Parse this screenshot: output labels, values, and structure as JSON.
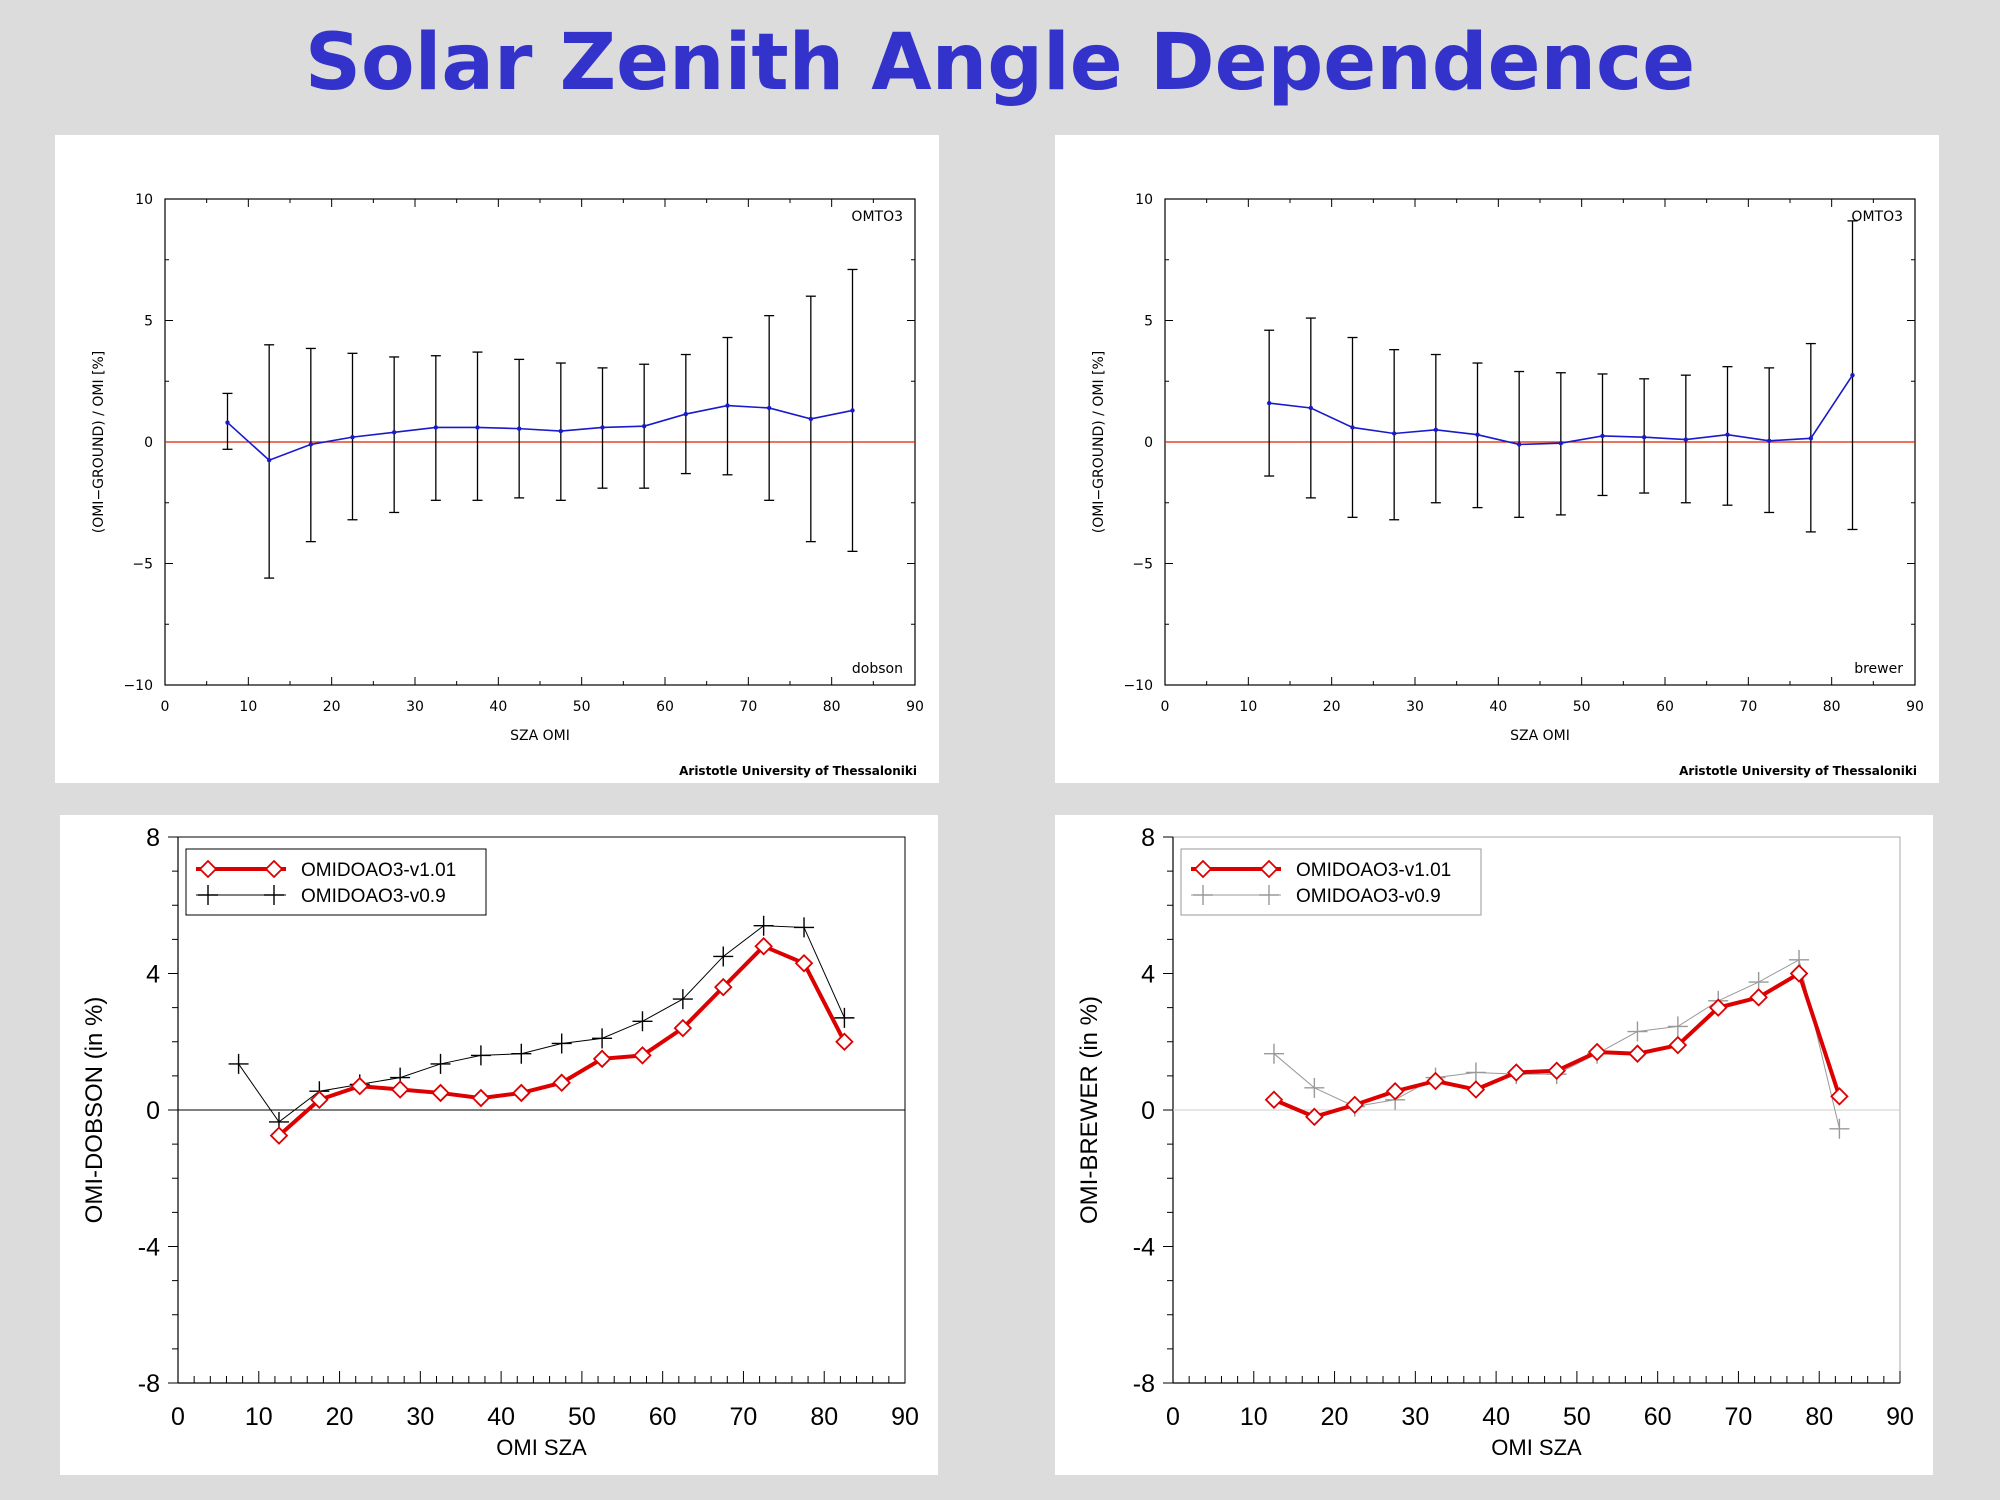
{
  "page_title": "Solar Zenith Angle Dependence",
  "colors": {
    "title": "#3333cc",
    "blue_line": "#1a1acc",
    "red_zero": "#dd2200",
    "red_series": "#dd0000"
  },
  "chart_data": [
    {
      "type": "line",
      "id": "dobson-errorbar",
      "title": "",
      "product_label": "OMTO3",
      "station_type_label": "dobson",
      "footer": "Aristotle University of Thessaloniki",
      "xlabel": "SZA OMI",
      "ylabel": "(OMI−GROUND) / OMI  [%]",
      "xlim": [
        0,
        90
      ],
      "ylim": [
        -10,
        10
      ],
      "xticks": [
        0,
        10,
        20,
        30,
        40,
        50,
        60,
        70,
        80,
        90
      ],
      "yticks": [
        -10,
        -5,
        0,
        5,
        10
      ],
      "x": [
        7.5,
        12.5,
        17.5,
        22.5,
        27.5,
        32.5,
        37.5,
        42.5,
        47.5,
        52.5,
        57.5,
        62.5,
        67.5,
        72.5,
        77.5,
        82.5
      ],
      "y": [
        0.8,
        -0.75,
        -0.1,
        0.2,
        0.4,
        0.6,
        0.6,
        0.55,
        0.45,
        0.6,
        0.65,
        1.15,
        1.5,
        1.4,
        0.95,
        1.3
      ],
      "err_low": [
        -0.3,
        -5.6,
        -4.1,
        -3.2,
        -2.9,
        -2.4,
        -2.4,
        -2.3,
        -2.4,
        -1.9,
        -1.9,
        -1.3,
        -1.35,
        -2.4,
        -4.1,
        -4.5
      ],
      "err_high": [
        2.0,
        4.0,
        3.85,
        3.65,
        3.5,
        3.55,
        3.7,
        3.4,
        3.25,
        3.05,
        3.2,
        3.6,
        4.3,
        5.2,
        6.0,
        7.1
      ],
      "grid": false,
      "zero_line": true
    },
    {
      "type": "line",
      "id": "brewer-errorbar",
      "title": "",
      "product_label": "OMTO3",
      "station_type_label": "brewer",
      "footer": "Aristotle University of Thessaloniki",
      "xlabel": "SZA OMI",
      "ylabel": "(OMI−GROUND) / OMI  [%]",
      "xlim": [
        0,
        90
      ],
      "ylim": [
        -10,
        10
      ],
      "xticks": [
        0,
        10,
        20,
        30,
        40,
        50,
        60,
        70,
        80,
        90
      ],
      "yticks": [
        -10,
        -5,
        0,
        5,
        10
      ],
      "x": [
        12.5,
        17.5,
        22.5,
        27.5,
        32.5,
        37.5,
        42.5,
        47.5,
        52.5,
        57.5,
        62.5,
        67.5,
        72.5,
        77.5,
        82.5
      ],
      "y": [
        1.6,
        1.4,
        0.6,
        0.35,
        0.5,
        0.3,
        -0.1,
        -0.05,
        0.25,
        0.2,
        0.1,
        0.3,
        0.05,
        0.15,
        2.75
      ],
      "err_low": [
        -1.4,
        -2.3,
        -3.1,
        -3.2,
        -2.5,
        -2.7,
        -3.1,
        -3.0,
        -2.2,
        -2.1,
        -2.5,
        -2.6,
        -2.9,
        -3.7,
        -3.6
      ],
      "err_high": [
        4.6,
        5.1,
        4.3,
        3.8,
        3.6,
        3.25,
        2.9,
        2.85,
        2.8,
        2.6,
        2.75,
        3.1,
        3.05,
        4.05,
        9.1
      ],
      "grid": false,
      "zero_line": true
    },
    {
      "type": "line",
      "id": "dobson-versions",
      "title": "",
      "xlabel": "OMI SZA",
      "ylabel": "OMI-DOBSON (in %)",
      "xlim": [
        0,
        90
      ],
      "ylim": [
        -8,
        8
      ],
      "xticks": [
        0,
        10,
        20,
        30,
        40,
        50,
        60,
        70,
        80,
        90
      ],
      "yticks": [
        -8,
        -4,
        0,
        4,
        8
      ],
      "legend_position": "top-left",
      "series": [
        {
          "name": "OMIDOAO3-v1.01",
          "color": "#dd0000",
          "marker": "diamond",
          "x": [
            12.5,
            17.5,
            22.5,
            27.5,
            32.5,
            37.5,
            42.5,
            47.5,
            52.5,
            57.5,
            62.5,
            67.5,
            72.5,
            77.5,
            82.5
          ],
          "y": [
            -0.75,
            0.3,
            0.7,
            0.6,
            0.5,
            0.35,
            0.5,
            0.8,
            1.5,
            1.6,
            2.4,
            3.6,
            4.8,
            4.3,
            2.0
          ]
        },
        {
          "name": "OMIDOAO3-v0.9",
          "color": "#000000",
          "marker": "plus",
          "x": [
            7.5,
            12.5,
            17.5,
            22.5,
            27.5,
            32.5,
            37.5,
            42.5,
            47.5,
            52.5,
            57.5,
            62.5,
            67.5,
            72.5,
            77.5,
            82.5
          ],
          "y": [
            1.35,
            -0.35,
            0.55,
            0.75,
            0.95,
            1.35,
            1.6,
            1.65,
            1.95,
            2.1,
            2.6,
            3.25,
            4.5,
            5.4,
            5.35,
            2.7
          ]
        }
      ],
      "grid": false,
      "zero_line": true
    },
    {
      "type": "line",
      "id": "brewer-versions",
      "title": "",
      "xlabel": "OMI SZA",
      "ylabel": "OMI-BREWER (in %)",
      "xlim": [
        0,
        90
      ],
      "ylim": [
        -8,
        8
      ],
      "xticks": [
        0,
        10,
        20,
        30,
        40,
        50,
        60,
        70,
        80,
        90
      ],
      "yticks": [
        -8,
        -4,
        0,
        4,
        8
      ],
      "legend_position": "top-left",
      "series": [
        {
          "name": "OMIDOAO3-v1.01",
          "color": "#dd0000",
          "marker": "diamond",
          "x": [
            12.5,
            17.5,
            22.5,
            27.5,
            32.5,
            37.5,
            42.5,
            47.5,
            52.5,
            57.5,
            62.5,
            67.5,
            72.5,
            77.5,
            82.5
          ],
          "y": [
            0.3,
            -0.2,
            0.15,
            0.55,
            0.85,
            0.6,
            1.1,
            1.15,
            1.7,
            1.65,
            1.9,
            3.0,
            3.3,
            4.0,
            0.4
          ]
        },
        {
          "name": "OMIDOAO3-v0.9",
          "color": "#999999",
          "marker": "plus",
          "x": [
            12.5,
            17.5,
            22.5,
            27.5,
            32.5,
            37.5,
            42.5,
            47.5,
            52.5,
            57.5,
            62.5,
            67.5,
            72.5,
            77.5,
            82.5
          ],
          "y": [
            1.65,
            0.65,
            0.1,
            0.3,
            0.95,
            1.1,
            1.05,
            1.05,
            1.65,
            2.3,
            2.45,
            3.2,
            3.75,
            4.4,
            -0.55
          ]
        }
      ],
      "grid": false,
      "zero_line": true
    }
  ]
}
